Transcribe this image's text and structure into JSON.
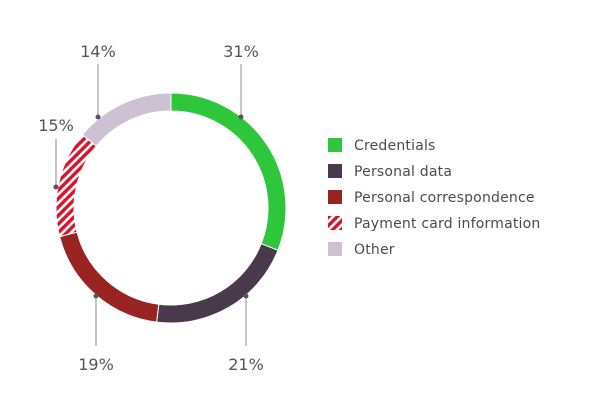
{
  "chart_data": {
    "type": "pie",
    "variant": "donut",
    "legend_position": "right",
    "series": [
      {
        "name": "Credentials",
        "value": 31,
        "label": "31%",
        "color": "#2ec63a",
        "pattern": "solid"
      },
      {
        "name": "Personal data",
        "value": 21,
        "label": "21%",
        "color": "#483a4b",
        "pattern": "solid"
      },
      {
        "name": "Personal correspondence",
        "value": 19,
        "label": "19%",
        "color": "#982321",
        "pattern": "solid"
      },
      {
        "name": "Payment card information",
        "value": 15,
        "label": "15%",
        "color": "#d6142b",
        "pattern": "diagonal-stripes"
      },
      {
        "name": "Other",
        "value": 14,
        "label": "14%",
        "color": "#cdc2d3",
        "pattern": "solid"
      }
    ]
  }
}
